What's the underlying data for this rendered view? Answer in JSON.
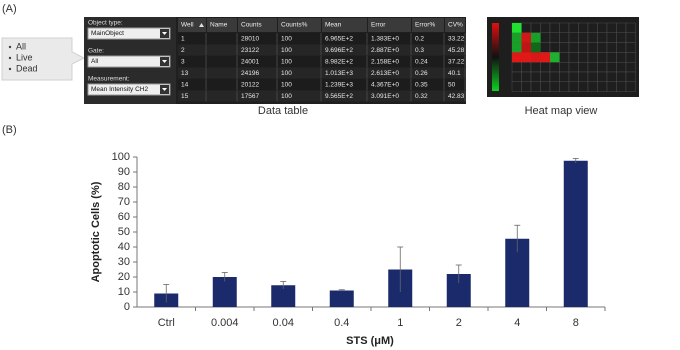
{
  "panel_a": {
    "label": "(A)",
    "gate_options": [
      "All",
      "Live",
      "Dead"
    ],
    "controls": [
      {
        "label": "Object type:",
        "value": "MainObject"
      },
      {
        "label": "Gate:",
        "value": "All"
      },
      {
        "label": "Measurement:",
        "value": "Mean Intensity CH2"
      }
    ],
    "table": {
      "headers": [
        "Well",
        "Name",
        "Counts",
        "Counts%",
        "Mean",
        "Error",
        "Error%",
        "CV%"
      ],
      "rows": [
        {
          "well": "1",
          "counts": "28010",
          "counts_pct": "100",
          "mean": "6.965E+2",
          "error": "1.383E+0",
          "error_pct": "0.2",
          "cv": "33.22"
        },
        {
          "well": "2",
          "counts": "23122",
          "counts_pct": "100",
          "mean": "9.696E+2",
          "error": "2.887E+0",
          "error_pct": "0.3",
          "cv": "45.28"
        },
        {
          "well": "3",
          "counts": "24001",
          "counts_pct": "100",
          "mean": "8.982E+2",
          "error": "2.158E+0",
          "error_pct": "0.24",
          "cv": "37.22"
        },
        {
          "well": "13",
          "counts": "24196",
          "counts_pct": "100",
          "mean": "1.013E+3",
          "error": "2.613E+0",
          "error_pct": "0.26",
          "cv": "40.1"
        },
        {
          "well": "14",
          "counts": "20122",
          "counts_pct": "100",
          "mean": "1.239E+3",
          "error": "4.367E+0",
          "error_pct": "0.35",
          "cv": "50"
        },
        {
          "well": "15",
          "counts": "17567",
          "counts_pct": "100",
          "mean": "9.565E+2",
          "error": "3.091E+0",
          "error_pct": "0.32",
          "cv": "42.83"
        }
      ]
    },
    "data_table_caption": "Data table",
    "heat_map_caption": "Heat map view"
  },
  "chart_data": {
    "type": "bar",
    "panel_label": "(B)",
    "categories": [
      "Ctrl",
      "0.004",
      "0.04",
      "0.4",
      "1",
      "2",
      "4",
      "8"
    ],
    "values": [
      9,
      20,
      14.5,
      11,
      25,
      22,
      45.5,
      97.5
    ],
    "errors": [
      6,
      3,
      2.5,
      0.5,
      15,
      6,
      9,
      1.5
    ],
    "color": "#1b2a6b",
    "ylim": [
      0,
      100
    ],
    "yticks": [
      0,
      10,
      20,
      30,
      40,
      50,
      60,
      70,
      80,
      90,
      100
    ],
    "y_label": "Apoptotic Cells (%)",
    "x_label": "STS (μM)"
  }
}
